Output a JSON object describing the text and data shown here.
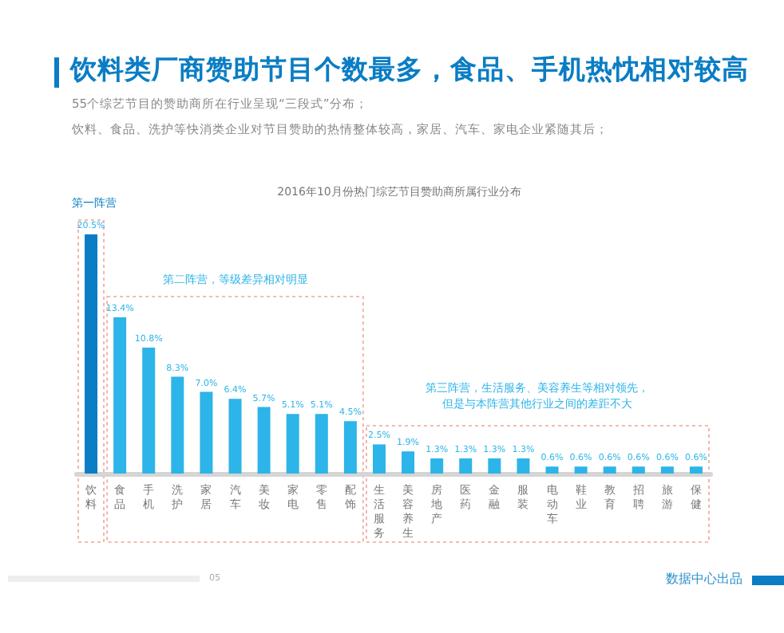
{
  "chart_data": {
    "type": "bar",
    "title": "饮料类厂商赞助节目个数最多，食品、手机热忱相对较高",
    "subtitle": "55个综艺节目的赞助商所在行业呈现“三段式”分布；",
    "xlabel": "2016年10月份热门综艺节目赞助商所属行业分布",
    "categories": [
      "饮料",
      "食品",
      "手机",
      "洗护",
      "家居",
      "汽车",
      "美妆",
      "家电",
      "零售",
      "配饰",
      "生活服务",
      "美容养生",
      "房地产",
      "医药",
      "金融",
      "服装",
      "电动车",
      "鞋业",
      "教育",
      "招聘",
      "旅游",
      "保健"
    ],
    "values": [
      20.5,
      13.4,
      10.8,
      8.3,
      7.0,
      6.4,
      5.7,
      5.1,
      5.1,
      4.5,
      2.5,
      1.9,
      1.3,
      1.3,
      1.3,
      1.3,
      0.6,
      0.6,
      0.6,
      0.6,
      0.6,
      0.6
    ],
    "value_labels": [
      "20.5%",
      "13.4%",
      "10.8%",
      "8.3%",
      "7.0%",
      "6.4%",
      "5.7%",
      "5.1%",
      "5.1%",
      "4.5%",
      "2.5%",
      "1.9%",
      "1.3%",
      "1.3%",
      "1.3%",
      "1.3%",
      "0.6%",
      "0.6%",
      "0.6%",
      "0.6%",
      "0.6%",
      "0.6%"
    ],
    "colors": [
      "#0a7dc4",
      "#2db4e8",
      "#2db4e8",
      "#2db4e8",
      "#2db4e8",
      "#2db4e8",
      "#2db4e8",
      "#2db4e8",
      "#2db4e8",
      "#2db4e8",
      "#2db4e8",
      "#2db4e8",
      "#2db4e8",
      "#2db4e8",
      "#2db4e8",
      "#2db4e8",
      "#2db4e8",
      "#2db4e8",
      "#2db4e8",
      "#2db4e8",
      "#2db4e8",
      "#2db4e8"
    ],
    "annotations": [
      "饮料、食品、洗护等快消类企业对节目赞助的热情整体较高，家居、汽车、家电企业紧随其后；",
      "第一阵营",
      "第二阵营，等级差异相对明显",
      "第三阵营，生活服务、美容养生等相对领先，",
      "但是与本阵营其他行业之间的差距不大",
      "05",
      "数据中心出品"
    ],
    "grid": false
  }
}
